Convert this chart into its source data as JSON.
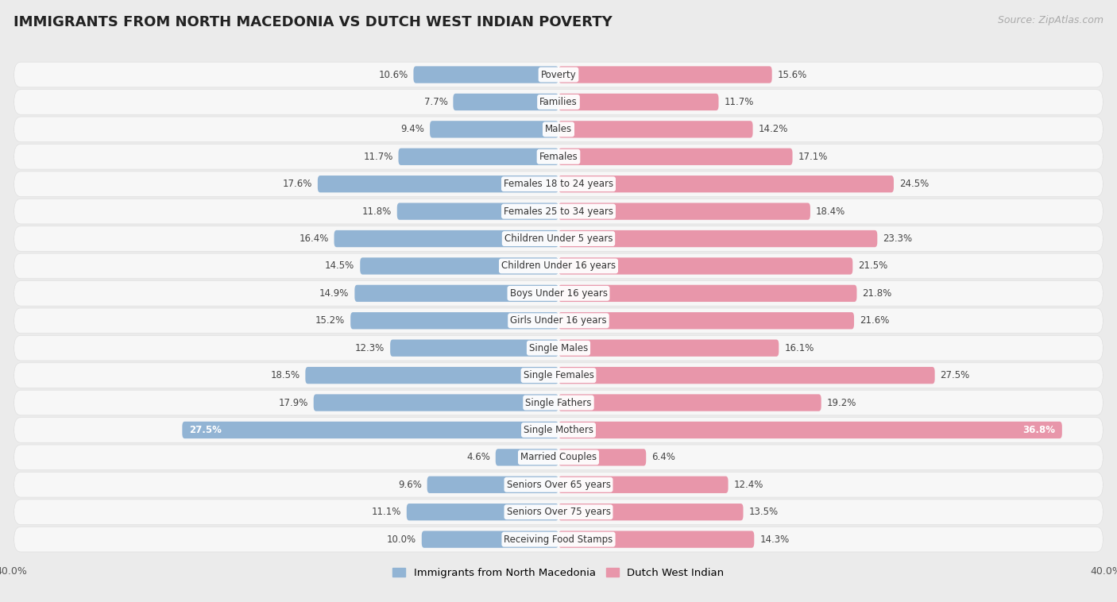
{
  "title": "IMMIGRANTS FROM NORTH MACEDONIA VS DUTCH WEST INDIAN POVERTY",
  "source": "Source: ZipAtlas.com",
  "categories": [
    "Poverty",
    "Families",
    "Males",
    "Females",
    "Females 18 to 24 years",
    "Females 25 to 34 years",
    "Children Under 5 years",
    "Children Under 16 years",
    "Boys Under 16 years",
    "Girls Under 16 years",
    "Single Males",
    "Single Females",
    "Single Fathers",
    "Single Mothers",
    "Married Couples",
    "Seniors Over 65 years",
    "Seniors Over 75 years",
    "Receiving Food Stamps"
  ],
  "left_values": [
    10.6,
    7.7,
    9.4,
    11.7,
    17.6,
    11.8,
    16.4,
    14.5,
    14.9,
    15.2,
    12.3,
    18.5,
    17.9,
    27.5,
    4.6,
    9.6,
    11.1,
    10.0
  ],
  "right_values": [
    15.6,
    11.7,
    14.2,
    17.1,
    24.5,
    18.4,
    23.3,
    21.5,
    21.8,
    21.6,
    16.1,
    27.5,
    19.2,
    36.8,
    6.4,
    12.4,
    13.5,
    14.3
  ],
  "left_color": "#92b4d4",
  "right_color": "#e896aa",
  "background_color": "#ebebeb",
  "bar_row_color": "#f7f7f7",
  "bar_row_edge_color": "#e0e0e0",
  "axis_max": 40.0,
  "legend_left": "Immigrants from North Macedonia",
  "legend_right": "Dutch West Indian",
  "title_fontsize": 13,
  "source_fontsize": 9,
  "label_fontsize": 8.5,
  "value_fontsize": 8.5,
  "bar_height": 0.62
}
